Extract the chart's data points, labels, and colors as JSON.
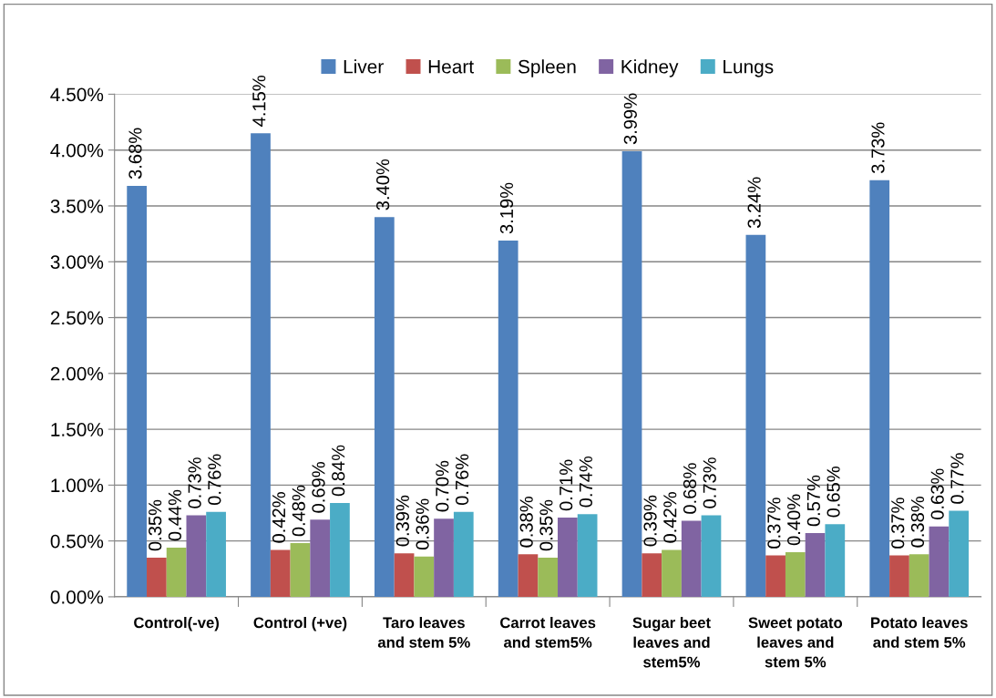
{
  "chart_data": {
    "type": "bar",
    "categories": [
      "Control(-ve)",
      "Control (+ve)",
      "Taro leaves\nand stem 5%",
      "Carrot leaves\nand stem5%",
      "Sugar beet\nleaves and\nstem5%",
      "Sweet potato\nleaves and\nstem 5%",
      "Potato leaves\nand stem 5%"
    ],
    "series": [
      {
        "name": "Liver",
        "color": "#4f81bd",
        "values": [
          3.68,
          4.15,
          3.4,
          3.19,
          3.99,
          3.24,
          3.73
        ],
        "value_labels": [
          "3.68%",
          "4.15%",
          "3.40%",
          "3.19%",
          "3.99%",
          "3.24%",
          "3.73%"
        ]
      },
      {
        "name": "Heart",
        "color": "#c0504d",
        "values": [
          0.35,
          0.42,
          0.39,
          0.38,
          0.39,
          0.37,
          0.37
        ],
        "value_labels": [
          "0.35%",
          "0.42%",
          "0.39%",
          "0.38%",
          "0.39%",
          "0.37%",
          "0.37%"
        ]
      },
      {
        "name": "Spleen",
        "color": "#9bbb59",
        "values": [
          0.44,
          0.48,
          0.36,
          0.35,
          0.42,
          0.4,
          0.38
        ],
        "value_labels": [
          "0.44%",
          "0.48%",
          "0.36%",
          "0.35%",
          "0.42%",
          "0.40%",
          "0.38%"
        ]
      },
      {
        "name": "Kidney",
        "color": "#8064a2",
        "values": [
          0.73,
          0.69,
          0.7,
          0.71,
          0.68,
          0.57,
          0.63
        ],
        "value_labels": [
          "0.73%",
          "0.69%",
          "0.70%",
          "0.71%",
          "0.68%",
          "0.57%",
          "0.63%"
        ]
      },
      {
        "name": "Lungs",
        "color": "#4bacc6",
        "values": [
          0.76,
          0.84,
          0.76,
          0.74,
          0.73,
          0.65,
          0.77
        ],
        "value_labels": [
          "0.76%",
          "0.84%",
          "0.76%",
          "0.74%",
          "0.73%",
          "0.65%",
          "0.77%"
        ]
      }
    ],
    "ylim": [
      0,
      4.5
    ],
    "yticks": [
      {
        "value": 0,
        "label": "0.00%"
      },
      {
        "value": 0.5,
        "label": "0.50%"
      },
      {
        "value": 1,
        "label": "1.00%"
      },
      {
        "value": 1.5,
        "label": "1.50%"
      },
      {
        "value": 2,
        "label": "2.00%"
      },
      {
        "value": 2.5,
        "label": "2.50%"
      },
      {
        "value": 3,
        "label": "3.00%"
      },
      {
        "value": 3.5,
        "label": "3.50%"
      },
      {
        "value": 4,
        "label": "4.00%"
      },
      {
        "value": 4.5,
        "label": "4.50%"
      }
    ],
    "grid": "y",
    "legend": "top"
  }
}
